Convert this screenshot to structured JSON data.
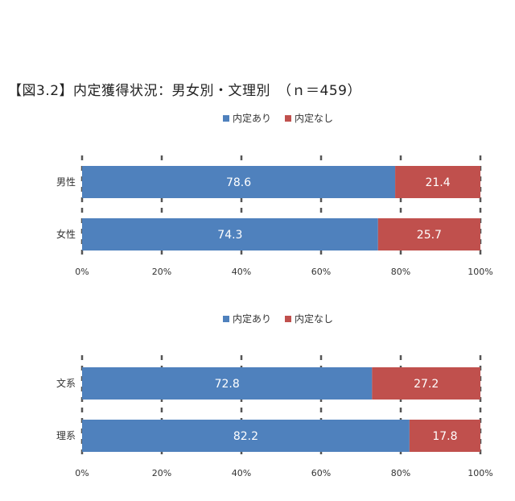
{
  "title": "【図3.2】内定獲得状況：男女別・文理別　（ｎ＝459）",
  "colors": {
    "offer": "#4f81bd",
    "no_offer": "#c0504d",
    "grid": "#555555"
  },
  "chart_data": [
    {
      "type": "bar",
      "orientation": "horizontal",
      "stacked": true,
      "legend_position": "top-center",
      "categories": [
        "男性",
        "女性"
      ],
      "series": [
        {
          "name": "内定あり",
          "values": [
            78.6,
            74.3
          ],
          "labels": [
            "78.6",
            "74.3"
          ]
        },
        {
          "name": "内定なし",
          "values": [
            21.4,
            25.7
          ],
          "labels": [
            "21.4",
            "25.7"
          ]
        }
      ],
      "xlim": [
        0,
        100
      ],
      "xticks": [
        "0%",
        "20%",
        "40%",
        "60%",
        "80%",
        "100%"
      ],
      "grid": true
    },
    {
      "type": "bar",
      "orientation": "horizontal",
      "stacked": true,
      "legend_position": "top-center",
      "categories": [
        "文系",
        "理系"
      ],
      "series": [
        {
          "name": "内定あり",
          "values": [
            72.8,
            82.2
          ],
          "labels": [
            "72.8",
            "82.2"
          ]
        },
        {
          "name": "内定なし",
          "values": [
            27.2,
            17.8
          ],
          "labels": [
            "27.2",
            "17.8"
          ]
        }
      ],
      "xlim": [
        0,
        100
      ],
      "xticks": [
        "0%",
        "20%",
        "40%",
        "60%",
        "80%",
        "100%"
      ],
      "grid": true
    }
  ]
}
